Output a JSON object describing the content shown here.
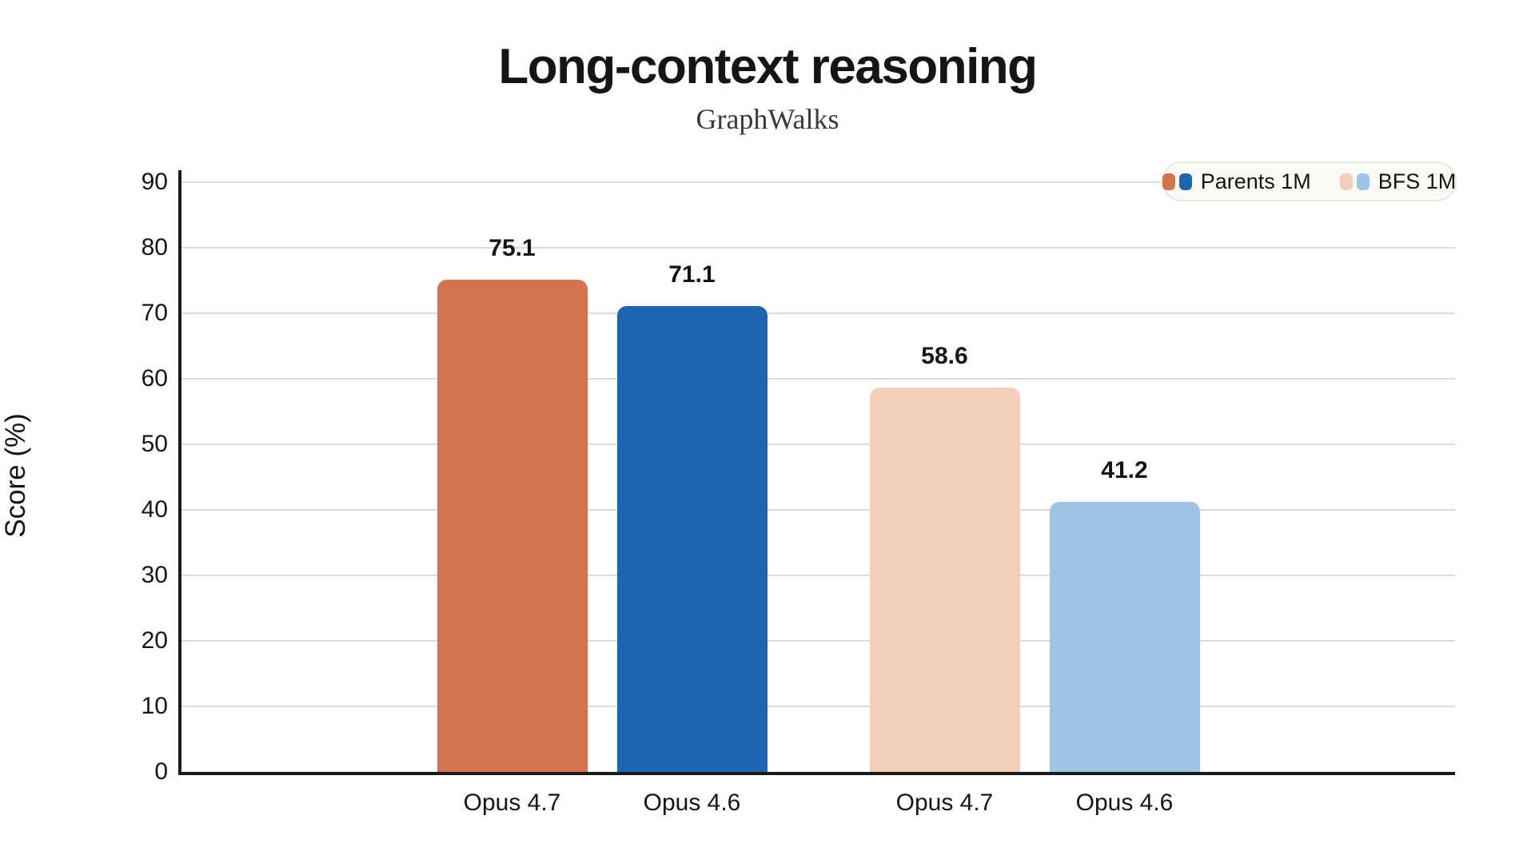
{
  "header": {
    "title": "Long-context reasoning",
    "subtitle": "GraphWalks"
  },
  "chart_data": {
    "type": "bar",
    "title": "Long-context reasoning",
    "subtitle": "GraphWalks",
    "xlabel": "",
    "ylabel": "Score (%)",
    "ylim": [
      0,
      90
    ],
    "yticks": [
      0,
      10,
      20,
      30,
      40,
      50,
      60,
      70,
      80,
      90
    ],
    "grid": true,
    "legend_position": "top-right",
    "series": [
      {
        "name": "Parents 1M",
        "colors": [
          "#D3744E",
          "#1E66B1"
        ]
      },
      {
        "name": "BFS 1M",
        "colors": [
          "#F3CEBA",
          "#9DC3E6"
        ]
      }
    ],
    "bars": [
      {
        "label": "Opus 4.7",
        "series": "Parents 1M",
        "value": 75.1,
        "value_label": "75.1",
        "color": "#D3744E"
      },
      {
        "label": "Opus 4.6",
        "series": "Parents 1M",
        "value": 71.1,
        "value_label": "71.1",
        "color": "#1E66B1"
      },
      {
        "label": "Opus 4.7",
        "series": "BFS 1M",
        "value": 58.6,
        "value_label": "58.6",
        "color": "#F3CEBA"
      },
      {
        "label": "Opus 4.6",
        "series": "BFS 1M",
        "value": 41.2,
        "value_label": "41.2",
        "color": "#9DC3E6"
      }
    ]
  },
  "legend": {
    "items": [
      {
        "label": "Parents 1M",
        "colors": [
          "#D3744E",
          "#1E66B1"
        ]
      },
      {
        "label": "BFS 1M",
        "colors": [
          "#F3CEBA",
          "#9DC3E6"
        ]
      }
    ]
  },
  "colors": {
    "background": "#FFFFFF",
    "grid": "#DDDBD7",
    "axis": "#1B1A19",
    "text": "#161513",
    "subtitle": "#3B3A35",
    "legend_bg": "#FBFAF7",
    "legend_border": "#E8E6E1"
  }
}
